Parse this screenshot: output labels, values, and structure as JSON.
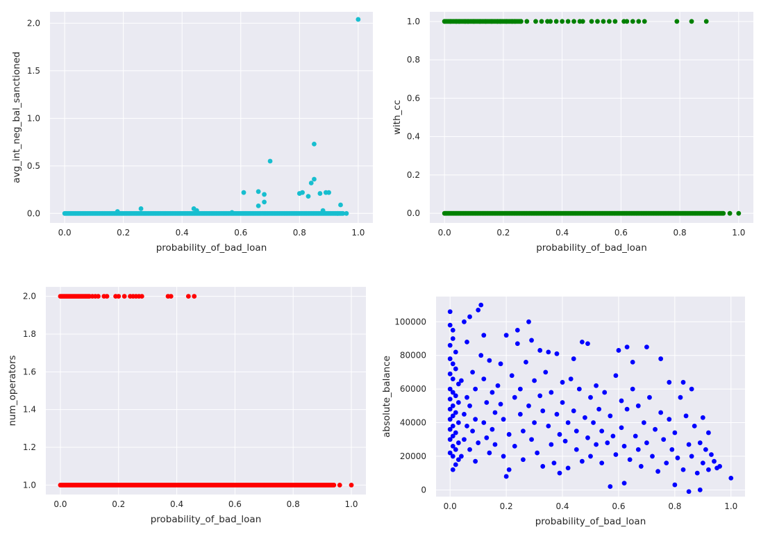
{
  "chart_data": [
    {
      "type": "scatter",
      "xlabel": "probability_of_bad_loan",
      "ylabel": "avg_int_neg_bal_sanctioned",
      "color": "#17becf",
      "xlim": [
        -0.05,
        1.05
      ],
      "ylim": [
        -0.1,
        2.12
      ],
      "xticks": [
        0.0,
        0.2,
        0.4,
        0.6,
        0.8,
        1.0
      ],
      "xtick_labels": [
        "0.0",
        "0.2",
        "0.4",
        "0.6",
        "0.8",
        "1.0"
      ],
      "yticks": [
        0.0,
        0.5,
        1.0,
        1.5,
        2.0
      ],
      "ytick_labels": [
        "0.0",
        "0.5",
        "1.0",
        "1.5",
        "2.0"
      ],
      "grid": true,
      "points": [
        [
          1.0,
          2.04
        ],
        [
          0.85,
          0.73
        ],
        [
          0.7,
          0.55
        ],
        [
          0.85,
          0.36
        ],
        [
          0.84,
          0.32
        ],
        [
          0.61,
          0.22
        ],
        [
          0.66,
          0.23
        ],
        [
          0.68,
          0.2
        ],
        [
          0.8,
          0.21
        ],
        [
          0.81,
          0.22
        ],
        [
          0.87,
          0.21
        ],
        [
          0.89,
          0.22
        ],
        [
          0.9,
          0.22
        ],
        [
          0.83,
          0.18
        ],
        [
          0.68,
          0.12
        ],
        [
          0.66,
          0.08
        ],
        [
          0.94,
          0.09
        ],
        [
          0.26,
          0.05
        ],
        [
          0.44,
          0.05
        ],
        [
          0.45,
          0.03
        ],
        [
          0.18,
          0.02
        ],
        [
          0.88,
          0.03
        ],
        [
          0.57,
          0.01
        ],
        [
          0.93,
          0.0
        ],
        [
          0.96,
          0.0
        ]
      ],
      "baseline_band": {
        "y": 0.0,
        "x_range": [
          0.0,
          0.95
        ]
      }
    },
    {
      "type": "scatter",
      "xlabel": "probability_of_bad_loan",
      "ylabel": "with_cc",
      "color": "#008000",
      "xlim": [
        -0.05,
        1.05
      ],
      "ylim": [
        -0.05,
        1.05
      ],
      "xticks": [
        0.0,
        0.2,
        0.4,
        0.6,
        0.8,
        1.0
      ],
      "xtick_labels": [
        "0.0",
        "0.2",
        "0.4",
        "0.6",
        "0.8",
        "1.0"
      ],
      "yticks": [
        0.0,
        0.2,
        0.4,
        0.6,
        0.8,
        1.0
      ],
      "ytick_labels": [
        "0.0",
        "0.2",
        "0.4",
        "0.6",
        "0.8",
        "1.0"
      ],
      "grid": true,
      "points": [
        [
          0.0,
          1
        ],
        [
          0.02,
          1
        ],
        [
          0.04,
          1
        ],
        [
          0.05,
          1
        ],
        [
          0.07,
          1
        ],
        [
          0.08,
          1
        ],
        [
          0.1,
          1
        ],
        [
          0.12,
          1
        ],
        [
          0.14,
          1
        ],
        [
          0.16,
          1
        ],
        [
          0.18,
          1
        ],
        [
          0.19,
          1
        ],
        [
          0.21,
          1
        ],
        [
          0.23,
          1
        ],
        [
          0.24,
          1
        ],
        [
          0.26,
          1
        ],
        [
          0.28,
          1
        ],
        [
          0.31,
          1
        ],
        [
          0.33,
          1
        ],
        [
          0.35,
          1
        ],
        [
          0.36,
          1
        ],
        [
          0.38,
          1
        ],
        [
          0.4,
          1
        ],
        [
          0.42,
          1
        ],
        [
          0.44,
          1
        ],
        [
          0.46,
          1
        ],
        [
          0.47,
          1
        ],
        [
          0.5,
          1
        ],
        [
          0.52,
          1
        ],
        [
          0.54,
          1
        ],
        [
          0.56,
          1
        ],
        [
          0.58,
          1
        ],
        [
          0.61,
          1
        ],
        [
          0.62,
          1
        ],
        [
          0.64,
          1
        ],
        [
          0.66,
          1
        ],
        [
          0.68,
          1
        ],
        [
          0.79,
          1
        ],
        [
          0.84,
          1
        ],
        [
          0.89,
          1
        ],
        [
          1.0,
          0
        ],
        [
          0.97,
          0
        ]
      ],
      "bands": [
        {
          "y": 1,
          "x_range": [
            0.0,
            0.26
          ]
        },
        {
          "y": 0,
          "x_range": [
            0.0,
            0.95
          ]
        }
      ]
    },
    {
      "type": "scatter",
      "xlabel": "probability_of_bad_loan",
      "ylabel": "num_operators",
      "color": "#ff0000",
      "xlim": [
        -0.05,
        1.05
      ],
      "ylim": [
        0.95,
        2.05
      ],
      "xticks": [
        0.0,
        0.2,
        0.4,
        0.6,
        0.8,
        1.0
      ],
      "xtick_labels": [
        "0.0",
        "0.2",
        "0.4",
        "0.6",
        "0.8",
        "1.0"
      ],
      "yticks": [
        1.0,
        1.2,
        1.4,
        1.6,
        1.8,
        2.0
      ],
      "ytick_labels": [
        "1.0",
        "1.2",
        "1.4",
        "1.6",
        "1.8",
        "2.0"
      ],
      "grid": true,
      "points": [
        [
          0.11,
          2
        ],
        [
          0.12,
          2
        ],
        [
          0.13,
          2
        ],
        [
          0.15,
          2
        ],
        [
          0.16,
          2
        ],
        [
          0.19,
          2
        ],
        [
          0.2,
          2
        ],
        [
          0.22,
          2
        ],
        [
          0.24,
          2
        ],
        [
          0.25,
          2
        ],
        [
          0.26,
          2
        ],
        [
          0.27,
          2
        ],
        [
          0.28,
          2
        ],
        [
          0.37,
          2
        ],
        [
          0.38,
          2
        ],
        [
          0.44,
          2
        ],
        [
          0.46,
          2
        ],
        [
          0.96,
          1
        ],
        [
          1.0,
          1
        ]
      ],
      "bands": [
        {
          "y": 2,
          "x_range": [
            0.0,
            0.1
          ]
        },
        {
          "y": 1,
          "x_range": [
            0.0,
            0.94
          ]
        }
      ]
    },
    {
      "type": "scatter",
      "xlabel": "probability_of_bad_loan",
      "ylabel": "absolute_balance",
      "color": "#0000ff",
      "xlim": [
        -0.05,
        1.05
      ],
      "ylim": [
        -4000,
        115000
      ],
      "xticks": [
        0.0,
        0.2,
        0.4,
        0.6,
        0.8,
        1.0
      ],
      "xtick_labels": [
        "0.0",
        "0.2",
        "0.4",
        "0.6",
        "0.8",
        "1.0"
      ],
      "yticks": [
        0,
        20000,
        40000,
        60000,
        80000,
        100000
      ],
      "ytick_labels": [
        "0",
        "20000",
        "40000",
        "60000",
        "80000",
        "100000"
      ],
      "grid": true,
      "points": [
        [
          0.0,
          106000
        ],
        [
          0.0,
          98000
        ],
        [
          0.01,
          95000
        ],
        [
          0.01,
          90000
        ],
        [
          0.0,
          86000
        ],
        [
          0.02,
          82000
        ],
        [
          0.0,
          78000
        ],
        [
          0.01,
          75000
        ],
        [
          0.02,
          72000
        ],
        [
          0.0,
          69000
        ],
        [
          0.01,
          66000
        ],
        [
          0.03,
          63000
        ],
        [
          0.0,
          60000
        ],
        [
          0.01,
          58000
        ],
        [
          0.02,
          56000
        ],
        [
          0.0,
          54000
        ],
        [
          0.03,
          52000
        ],
        [
          0.01,
          50000
        ],
        [
          0.0,
          48000
        ],
        [
          0.02,
          46000
        ],
        [
          0.01,
          44000
        ],
        [
          0.0,
          42000
        ],
        [
          0.03,
          40000
        ],
        [
          0.01,
          38000
        ],
        [
          0.0,
          36000
        ],
        [
          0.02,
          34000
        ],
        [
          0.01,
          32000
        ],
        [
          0.0,
          30000
        ],
        [
          0.03,
          28000
        ],
        [
          0.01,
          26000
        ],
        [
          0.02,
          24000
        ],
        [
          0.0,
          22000
        ],
        [
          0.01,
          20000
        ],
        [
          0.03,
          18000
        ],
        [
          0.02,
          15000
        ],
        [
          0.01,
          12000
        ],
        [
          0.04,
          65000
        ],
        [
          0.05,
          45000
        ],
        [
          0.05,
          30000
        ],
        [
          0.04,
          20000
        ],
        [
          0.06,
          55000
        ],
        [
          0.06,
          38000
        ],
        [
          0.05,
          100000
        ],
        [
          0.07,
          103000
        ],
        [
          0.06,
          88000
        ],
        [
          0.08,
          70000
        ],
        [
          0.07,
          50000
        ],
        [
          0.08,
          35000
        ],
        [
          0.07,
          24000
        ],
        [
          0.09,
          60000
        ],
        [
          0.09,
          42000
        ],
        [
          0.1,
          28000
        ],
        [
          0.09,
          17000
        ],
        [
          0.1,
          107000
        ],
        [
          0.11,
          110000
        ],
        [
          0.12,
          92000
        ],
        [
          0.11,
          80000
        ],
        [
          0.12,
          66000
        ],
        [
          0.13,
          52000
        ],
        [
          0.12,
          40000
        ],
        [
          0.13,
          31000
        ],
        [
          0.14,
          22000
        ],
        [
          0.14,
          77000
        ],
        [
          0.15,
          58000
        ],
        [
          0.16,
          46000
        ],
        [
          0.15,
          36000
        ],
        [
          0.16,
          27000
        ],
        [
          0.17,
          62000
        ],
        [
          0.18,
          75000
        ],
        [
          0.18,
          51000
        ],
        [
          0.19,
          42000
        ],
        [
          0.19,
          20000
        ],
        [
          0.2,
          8000
        ],
        [
          0.21,
          12000
        ],
        [
          0.2,
          92000
        ],
        [
          0.22,
          68000
        ],
        [
          0.21,
          33000
        ],
        [
          0.23,
          55000
        ],
        [
          0.23,
          26000
        ],
        [
          0.24,
          87000
        ],
        [
          0.24,
          95000
        ],
        [
          0.25,
          60000
        ],
        [
          0.25,
          45000
        ],
        [
          0.26,
          35000
        ],
        [
          0.26,
          18000
        ],
        [
          0.27,
          76000
        ],
        [
          0.28,
          100000
        ],
        [
          0.28,
          50000
        ],
        [
          0.29,
          89000
        ],
        [
          0.29,
          30000
        ],
        [
          0.3,
          65000
        ],
        [
          0.3,
          40000
        ],
        [
          0.31,
          22000
        ],
        [
          0.32,
          56000
        ],
        [
          0.32,
          83000
        ],
        [
          0.33,
          47000
        ],
        [
          0.33,
          14000
        ],
        [
          0.34,
          70000
        ],
        [
          0.35,
          82000
        ],
        [
          0.35,
          38000
        ],
        [
          0.36,
          27000
        ],
        [
          0.36,
          58000
        ],
        [
          0.37,
          16000
        ],
        [
          0.38,
          81000
        ],
        [
          0.38,
          45000
        ],
        [
          0.39,
          33000
        ],
        [
          0.39,
          10000
        ],
        [
          0.4,
          64000
        ],
        [
          0.4,
          52000
        ],
        [
          0.41,
          29000
        ],
        [
          0.42,
          40000
        ],
        [
          0.42,
          13000
        ],
        [
          0.43,
          66000
        ],
        [
          0.44,
          78000
        ],
        [
          0.44,
          47000
        ],
        [
          0.45,
          24000
        ],
        [
          0.45,
          35000
        ],
        [
          0.46,
          60000
        ],
        [
          0.47,
          88000
        ],
        [
          0.47,
          17000
        ],
        [
          0.48,
          43000
        ],
        [
          0.49,
          87000
        ],
        [
          0.49,
          31000
        ],
        [
          0.5,
          55000
        ],
        [
          0.5,
          20000
        ],
        [
          0.51,
          40000
        ],
        [
          0.52,
          62000
        ],
        [
          0.52,
          27000
        ],
        [
          0.53,
          48000
        ],
        [
          0.54,
          35000
        ],
        [
          0.54,
          16000
        ],
        [
          0.55,
          58000
        ],
        [
          0.56,
          28000
        ],
        [
          0.57,
          2000
        ],
        [
          0.57,
          44000
        ],
        [
          0.58,
          32000
        ],
        [
          0.59,
          68000
        ],
        [
          0.59,
          21000
        ],
        [
          0.6,
          83000
        ],
        [
          0.61,
          53000
        ],
        [
          0.61,
          37000
        ],
        [
          0.62,
          4000
        ],
        [
          0.62,
          26000
        ],
        [
          0.63,
          85000
        ],
        [
          0.63,
          48000
        ],
        [
          0.64,
          18000
        ],
        [
          0.65,
          76000
        ],
        [
          0.65,
          60000
        ],
        [
          0.66,
          32000
        ],
        [
          0.67,
          24000
        ],
        [
          0.67,
          50000
        ],
        [
          0.68,
          14000
        ],
        [
          0.69,
          40000
        ],
        [
          0.7,
          85000
        ],
        [
          0.7,
          28000
        ],
        [
          0.71,
          55000
        ],
        [
          0.72,
          20000
        ],
        [
          0.73,
          36000
        ],
        [
          0.74,
          11000
        ],
        [
          0.75,
          78000
        ],
        [
          0.75,
          46000
        ],
        [
          0.76,
          30000
        ],
        [
          0.77,
          16000
        ],
        [
          0.78,
          64000
        ],
        [
          0.78,
          42000
        ],
        [
          0.79,
          24000
        ],
        [
          0.8,
          3000
        ],
        [
          0.8,
          34000
        ],
        [
          0.81,
          19000
        ],
        [
          0.82,
          55000
        ],
        [
          0.83,
          12000
        ],
        [
          0.83,
          64000
        ],
        [
          0.84,
          44000
        ],
        [
          0.85,
          27000
        ],
        [
          0.85,
          -1000
        ],
        [
          0.86,
          60000
        ],
        [
          0.86,
          20000
        ],
        [
          0.87,
          38000
        ],
        [
          0.88,
          10000
        ],
        [
          0.89,
          28000
        ],
        [
          0.89,
          0
        ],
        [
          0.9,
          43000
        ],
        [
          0.9,
          16000
        ],
        [
          0.91,
          24000
        ],
        [
          0.92,
          34000
        ],
        [
          0.92,
          12000
        ],
        [
          0.93,
          21000
        ],
        [
          0.94,
          17000
        ],
        [
          0.95,
          13000
        ],
        [
          0.96,
          14000
        ],
        [
          1.0,
          7000
        ]
      ]
    }
  ]
}
